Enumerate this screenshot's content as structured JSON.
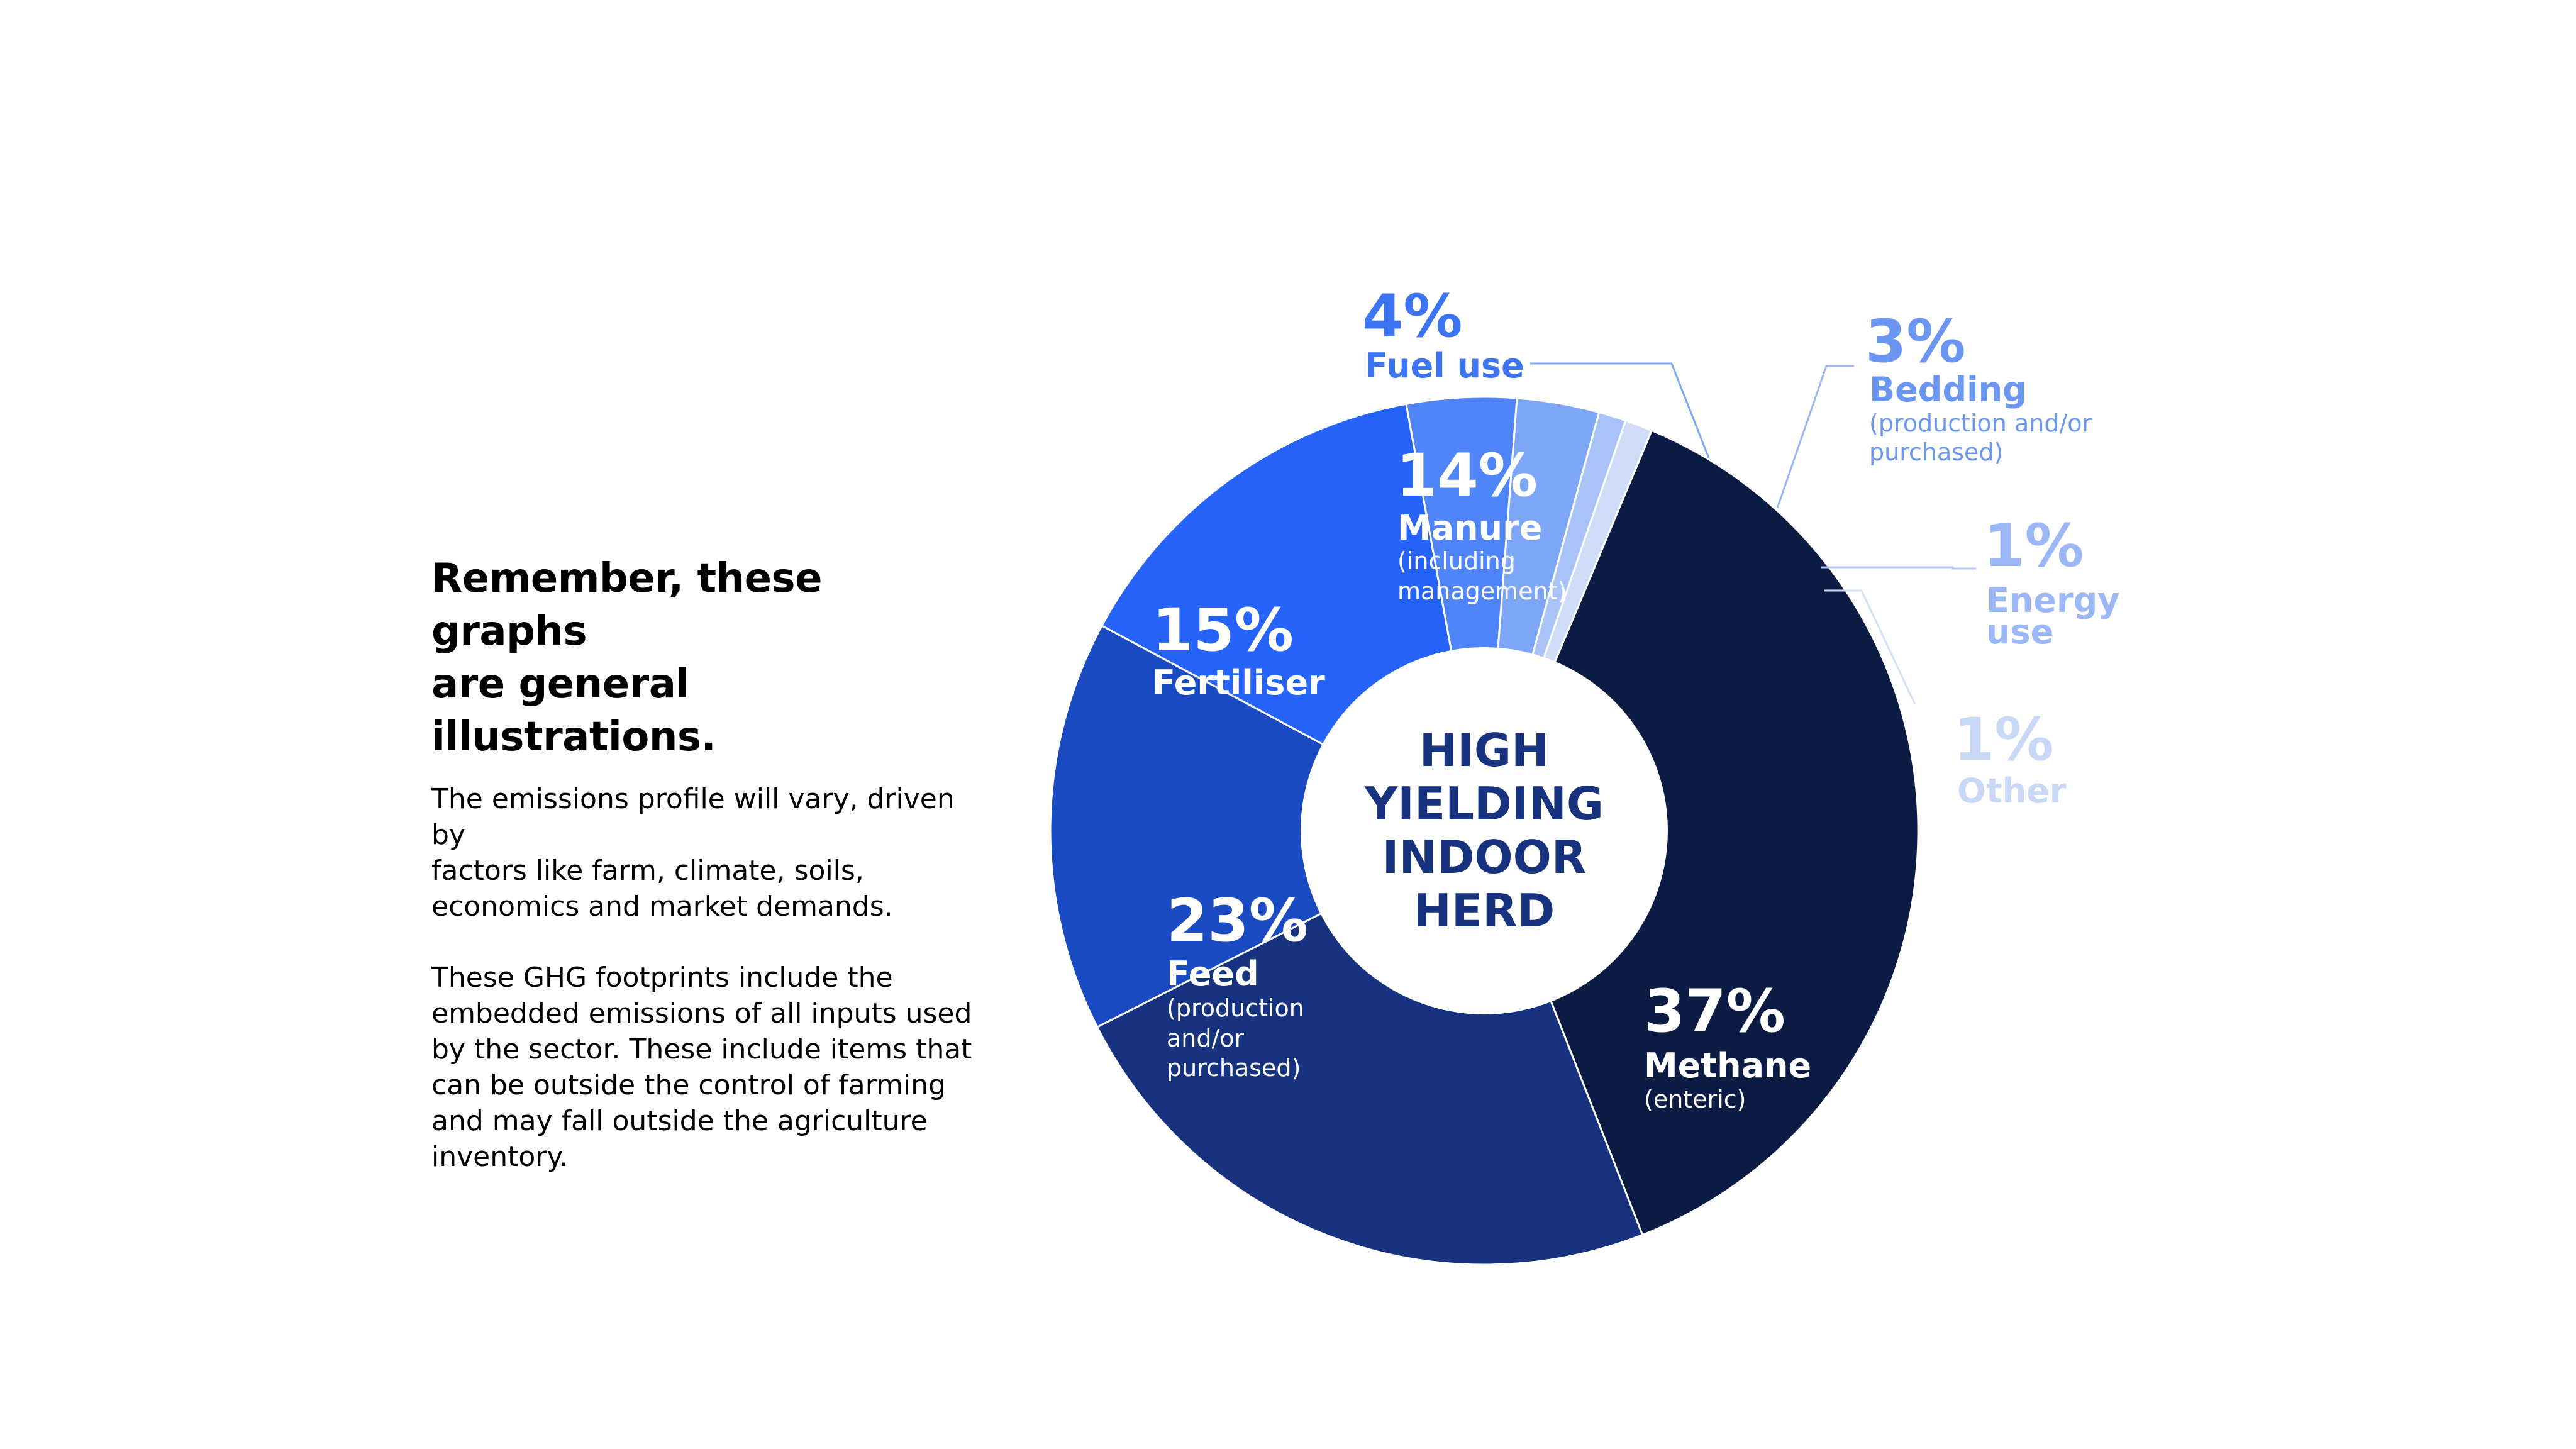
{
  "side": {
    "heading_line1": "Remember, these graphs",
    "heading_line2": "are general illustrations.",
    "para1": [
      "The emissions profile will vary, driven by",
      "factors like farm, climate, soils,",
      "economics and market demands."
    ],
    "para2": [
      "These GHG footprints include the",
      "embedded emissions of all inputs used",
      "by the sector. These include items that",
      "can be outside the control of farming",
      "and may fall outside the agriculture",
      "inventory."
    ]
  },
  "chart_data": {
    "type": "pie",
    "center_label": [
      "HIGH",
      "YIELDING",
      "INDOOR",
      "HERD"
    ],
    "slices": [
      {
        "pct_label": "37%",
        "value": 37,
        "name": "Methane",
        "sub": [
          "(enteric)"
        ],
        "color": "#0b1b43"
      },
      {
        "pct_label": "23%",
        "value": 23,
        "name": "Feed",
        "sub": [
          "(production",
          "and/or",
          "purchased)"
        ],
        "color": "#17337f"
      },
      {
        "pct_label": "15%",
        "value": 15,
        "name": "Fertiliser",
        "sub": [],
        "color": "#1b4bc3"
      },
      {
        "pct_label": "14%",
        "value": 14,
        "name": "Manure",
        "sub": [
          "(including",
          "management)"
        ],
        "color": "#2563fa"
      },
      {
        "pct_label": "4%",
        "value": 4,
        "name": "Fuel use",
        "sub": [],
        "color": "#4f85f9"
      },
      {
        "pct_label": "3%",
        "value": 3,
        "name": "Bedding",
        "sub": [
          "(production and/or",
          "purchased)"
        ],
        "color": "#7ea6f7"
      },
      {
        "pct_label": "1%",
        "value": 1,
        "name": "Energy use",
        "sub": [],
        "color": "#a9c3f9"
      },
      {
        "pct_label": "1%",
        "value": 1,
        "name": "Other",
        "sub": [],
        "color": "#cedcf8"
      }
    ]
  },
  "colors": {
    "fuel_label": "#3d74f2",
    "bedding_label": "#6b96f1",
    "energy_label": "#9bb7f5",
    "other_label": "#c9d8f6"
  }
}
